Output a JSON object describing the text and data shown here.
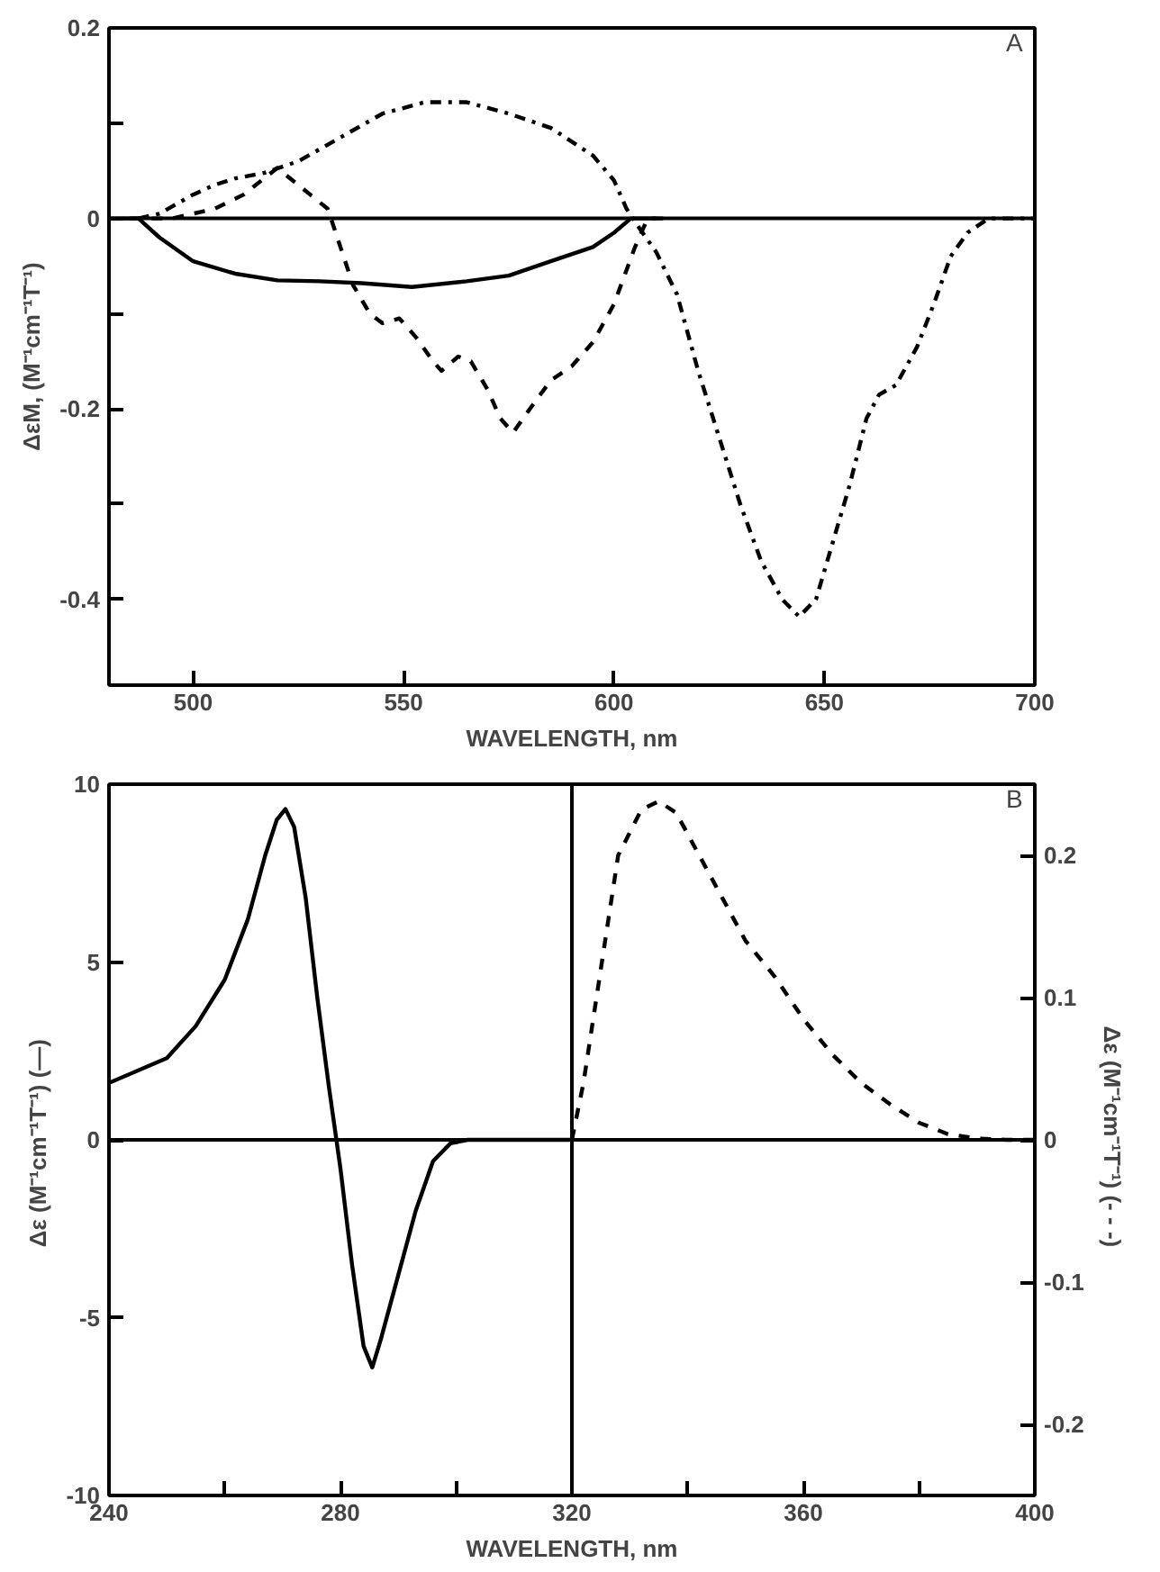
{
  "chart_data": [
    {
      "type": "line",
      "xlabel": "WAVELENGTH, nm",
      "ylabel": "ΔεM, (M⁻¹cm⁻¹T⁻¹)",
      "annotations": [
        "A"
      ],
      "xlim": [
        480,
        700
      ],
      "ylim": [
        -0.49,
        0.2
      ],
      "xticks": [
        500,
        550,
        600,
        650,
        700
      ],
      "yticks": [
        0.2,
        {
          "value": 0.1,
          "label": null
        },
        0,
        {
          "value": -0.1,
          "label": null
        },
        -0.2,
        {
          "value": -0.3,
          "label": null
        },
        -0.4
      ],
      "grid": false,
      "ref_lines": [
        {
          "axis": "y",
          "value": 0,
          "color": "#000000"
        }
      ],
      "series": [
        {
          "color": "#000000",
          "line_style": "solid",
          "x": [
            480,
            487,
            492,
            500,
            510,
            520,
            530,
            540,
            552,
            565,
            575,
            585,
            595,
            600,
            604,
            610
          ],
          "values": [
            0,
            0,
            -0.02,
            -0.045,
            -0.058,
            -0.065,
            -0.066,
            -0.068,
            -0.072,
            -0.066,
            -0.06,
            -0.045,
            -0.03,
            -0.015,
            0,
            0
          ]
        },
        {
          "color": "#000000",
          "line_style": "dashed",
          "x": [
            485,
            495,
            505,
            512,
            520,
            525,
            532,
            535,
            538,
            542,
            545,
            549,
            553,
            557,
            559,
            563,
            566,
            570,
            573,
            576,
            580,
            585,
            590,
            595,
            600,
            605,
            608,
            612
          ],
          "values": [
            0,
            0,
            0.01,
            0.025,
            0.053,
            0.035,
            0.01,
            -0.03,
            -0.07,
            -0.1,
            -0.11,
            -0.105,
            -0.125,
            -0.15,
            -0.16,
            -0.145,
            -0.15,
            -0.18,
            -0.21,
            -0.225,
            -0.2,
            -0.17,
            -0.155,
            -0.13,
            -0.09,
            -0.03,
            0,
            0
          ]
        },
        {
          "color": "#000000",
          "line_style": "dashdot",
          "x": [
            487,
            492,
            500,
            505,
            510,
            517,
            525,
            535,
            545,
            555,
            565,
            575,
            585,
            595,
            600,
            603,
            606,
            610,
            615,
            620,
            625,
            630,
            635,
            640,
            644,
            648,
            652,
            656,
            660,
            663,
            667,
            672,
            676,
            680,
            684,
            689,
            700
          ],
          "values": [
            0,
            0.005,
            0.025,
            0.035,
            0.042,
            0.048,
            0.06,
            0.085,
            0.11,
            0.122,
            0.122,
            0.11,
            0.095,
            0.066,
            0.04,
            0.01,
            -0.01,
            -0.035,
            -0.08,
            -0.16,
            -0.23,
            -0.3,
            -0.36,
            -0.4,
            -0.418,
            -0.4,
            -0.34,
            -0.28,
            -0.21,
            -0.185,
            -0.175,
            -0.135,
            -0.09,
            -0.04,
            -0.015,
            0,
            0
          ]
        }
      ]
    },
    {
      "type": "line",
      "xlabel": "WAVELENGTH, nm",
      "ylabel": "Δε  (M⁻¹cm⁻¹T⁻¹) (—)",
      "y2label": "Δε  (M⁻¹cm⁻¹T⁻¹) (- - -)",
      "annotations": [
        "B"
      ],
      "xlim": [
        240,
        400
      ],
      "ylim": [
        -10,
        10
      ],
      "y2lim": [
        -0.25,
        0.25
      ],
      "xticks": [
        240,
        {
          "value": 260,
          "label": null
        },
        280,
        {
          "value": 300,
          "label": null
        },
        320,
        {
          "value": 340,
          "label": null
        },
        360,
        {
          "value": 380,
          "label": null
        },
        400
      ],
      "yticks": [
        -10,
        -5,
        0,
        5,
        10
      ],
      "y2ticks": [
        -0.2,
        -0.1,
        0,
        0.1,
        0.2
      ],
      "grid": false,
      "ref_lines": [
        {
          "axis": "y",
          "value": 0,
          "color": "#000000"
        },
        {
          "axis": "x",
          "value": 320,
          "color": "#000000"
        }
      ],
      "series": [
        {
          "color": "#000000",
          "line_style": "solid",
          "x": [
            240,
            250,
            255,
            260,
            264,
            267,
            269,
            270.5,
            272,
            274,
            276,
            278,
            280,
            282,
            284,
            285.5,
            287,
            290,
            293,
            296,
            299,
            302,
            320
          ],
          "values": [
            1.6,
            2.3,
            3.2,
            4.5,
            6.2,
            8.0,
            9.0,
            9.3,
            8.8,
            6.8,
            4.0,
            1.5,
            -0.8,
            -3.5,
            -5.8,
            -6.4,
            -5.6,
            -3.8,
            -2.0,
            -0.6,
            -0.1,
            0,
            0
          ]
        },
        {
          "color": "#000000",
          "line_style": "dashed",
          "axis": "y2",
          "x": [
            320,
            322,
            325,
            328,
            332,
            335,
            338,
            342,
            346,
            350,
            355,
            360,
            365,
            370,
            375,
            380,
            385,
            390,
            395,
            400
          ],
          "values": [
            0,
            0.04,
            0.12,
            0.2,
            0.232,
            0.238,
            0.23,
            0.2,
            0.17,
            0.14,
            0.115,
            0.085,
            0.06,
            0.04,
            0.025,
            0.012,
            0.004,
            0.001,
            0,
            0
          ]
        }
      ]
    }
  ]
}
